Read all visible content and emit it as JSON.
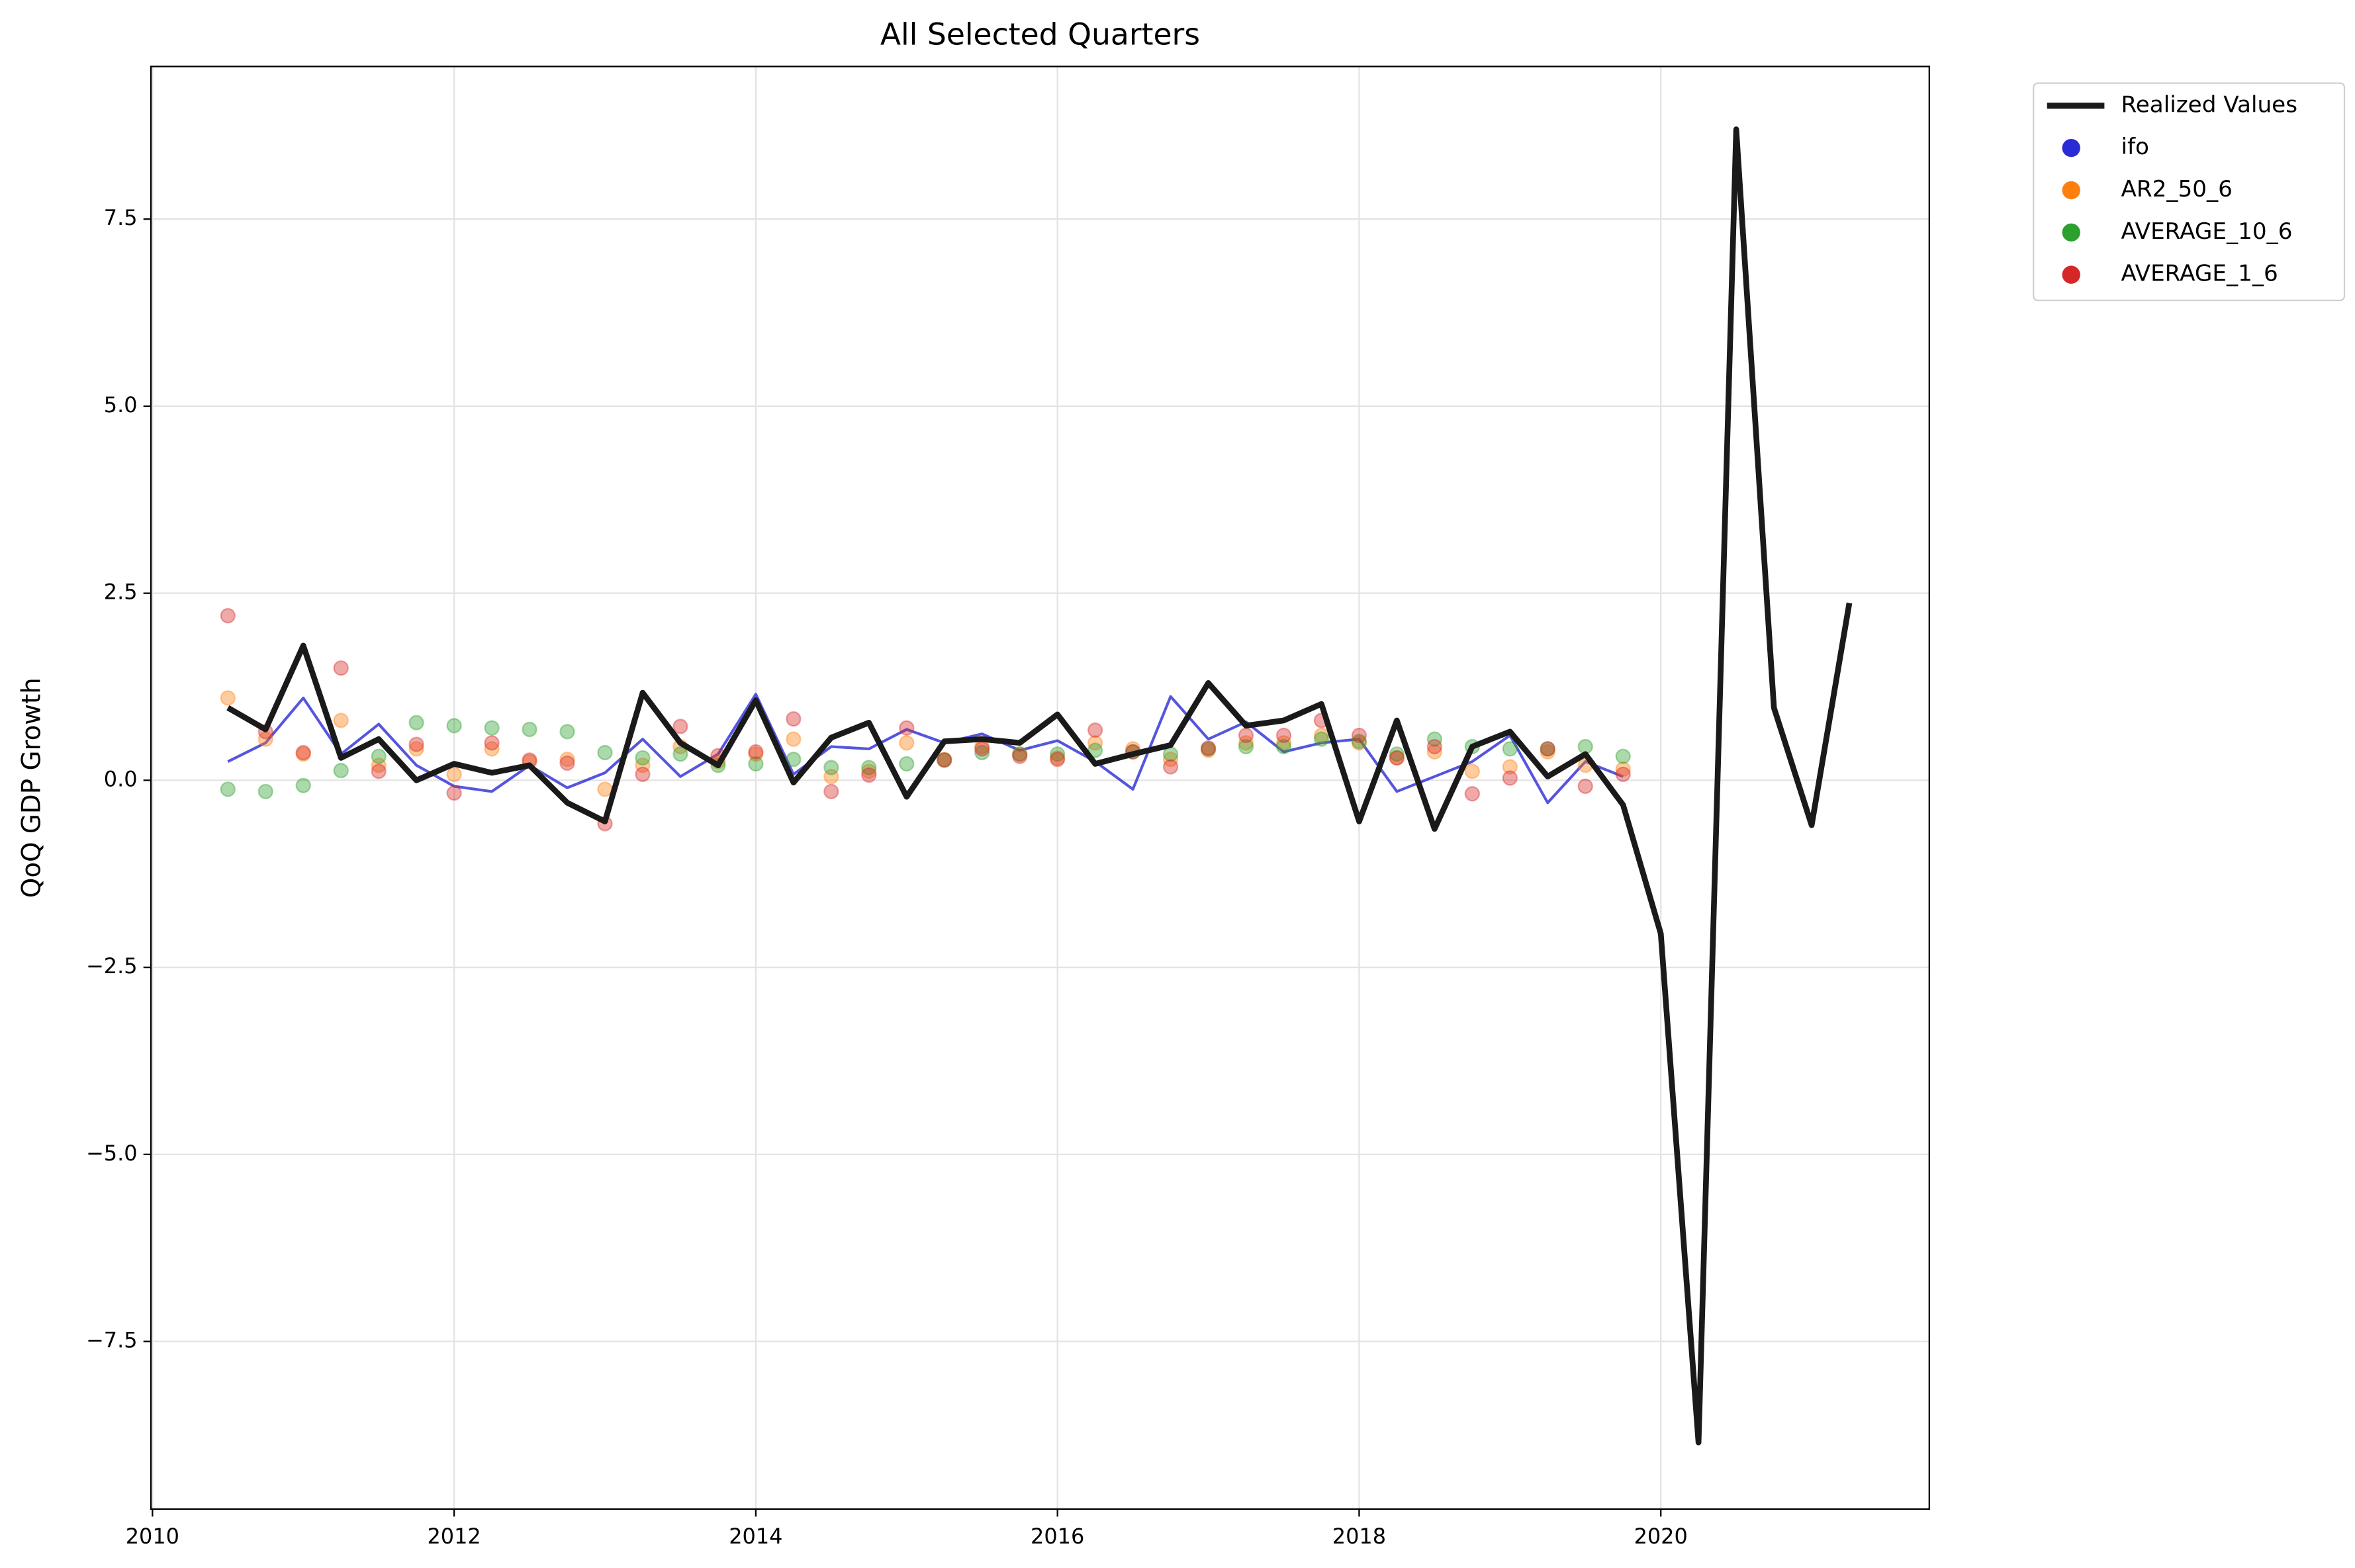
{
  "chart_data": {
    "type": "line",
    "title": "All Selected Quarters",
    "y_label": "QoQ GDP Growth",
    "xlim": [
      2009.99,
      2021.78
    ],
    "ylim": [
      -9.74,
      9.54
    ],
    "xticks": [
      2010,
      2012,
      2014,
      2016,
      2018,
      2020
    ],
    "yticks": [
      {
        "value": -7.5,
        "label": "−7.5"
      },
      {
        "value": -5,
        "label": "−5.0"
      },
      {
        "value": -2.5,
        "label": "−2.5"
      },
      {
        "value": 0,
        "label": "0.0"
      },
      2.5,
      {
        "value": 5,
        "label": "5.0"
      },
      7.5
    ],
    "grid": true,
    "legend": "outside upper right",
    "series": [
      {
        "name": "Realized Values",
        "color": "#1a1a1a",
        "kind": "line",
        "legend_marker": "line",
        "x": [
          2010.5,
          2010.75,
          2011,
          2011.25,
          2011.5,
          2011.75,
          2012,
          2012.25,
          2012.5,
          2012.75,
          2013,
          2013.25,
          2013.5,
          2013.75,
          2014,
          2014.25,
          2014.5,
          2014.75,
          2015,
          2015.25,
          2015.5,
          2015.75,
          2016,
          2016.25,
          2016.5,
          2016.75,
          2017,
          2017.25,
          2017.5,
          2017.75,
          2018,
          2018.25,
          2018.5,
          2018.75,
          2019,
          2019.25,
          2019.5,
          2019.75,
          2020,
          2020.25,
          2020.5,
          2020.75,
          2021,
          2021.25
        ],
        "values": [
          0.97,
          0.68,
          1.8,
          0.3,
          0.55,
          0.0,
          0.22,
          0.1,
          0.2,
          -0.3,
          -0.55,
          1.17,
          0.5,
          0.2,
          1.07,
          -0.03,
          0.57,
          0.77,
          -0.22,
          0.52,
          0.55,
          0.5,
          0.88,
          0.22,
          0.35,
          0.47,
          1.3,
          0.73,
          0.8,
          1.02,
          -0.55,
          0.8,
          -0.65,
          0.45,
          0.65,
          0.05,
          0.35,
          -0.33,
          -2.05,
          -8.85,
          8.7,
          0.97,
          -0.6,
          2.37
        ]
      },
      {
        "name": "ifo",
        "color": "#2b2bd6",
        "kind": "line",
        "legend_marker": "dot",
        "x": [
          2010.5,
          2010.75,
          2011,
          2011.25,
          2011.5,
          2011.75,
          2012,
          2012.25,
          2012.5,
          2012.75,
          2013,
          2013.25,
          2013.5,
          2013.75,
          2014,
          2014.25,
          2014.5,
          2014.75,
          2015,
          2015.25,
          2015.5,
          2015.75,
          2016,
          2016.25,
          2016.5,
          2016.75,
          2017,
          2017.25,
          2017.5,
          2017.75,
          2018,
          2018.25,
          2018.5,
          2018.75,
          2019,
          2019.25,
          2019.5,
          2019.75
        ],
        "values": [
          0.25,
          0.5,
          1.1,
          0.35,
          0.75,
          0.2,
          -0.08,
          -0.15,
          0.2,
          -0.1,
          0.1,
          0.55,
          0.05,
          0.35,
          1.15,
          0.08,
          0.45,
          0.42,
          0.68,
          0.5,
          0.62,
          0.4,
          0.53,
          0.25,
          -0.12,
          1.12,
          0.55,
          0.78,
          0.38,
          0.5,
          0.55,
          -0.15,
          0.05,
          0.25,
          0.6,
          -0.3,
          0.25,
          0.05
        ]
      },
      {
        "name": "AR2_50_6",
        "color": "#ff7f0e",
        "kind": "scatter",
        "legend_marker": "dot",
        "x": [
          2010.5,
          2010.75,
          2011,
          2011.25,
          2011.5,
          2011.75,
          2012,
          2012.25,
          2012.5,
          2012.75,
          2013,
          2013.25,
          2013.5,
          2013.75,
          2014,
          2014.25,
          2014.5,
          2014.75,
          2015,
          2015.25,
          2015.5,
          2015.75,
          2016,
          2016.25,
          2016.5,
          2016.75,
          2017,
          2017.25,
          2017.5,
          2017.75,
          2018,
          2018.25,
          2018.5,
          2018.75,
          2019,
          2019.25,
          2019.5,
          2019.75
        ],
        "values": [
          1.1,
          0.55,
          0.35,
          0.8,
          0.2,
          0.42,
          0.08,
          0.42,
          0.25,
          0.28,
          -0.12,
          0.2,
          0.45,
          0.25,
          0.35,
          0.55,
          0.05,
          0.12,
          0.5,
          0.28,
          0.45,
          0.35,
          0.3,
          0.5,
          0.42,
          0.28,
          0.4,
          0.5,
          0.5,
          0.6,
          0.5,
          0.3,
          0.38,
          0.12,
          0.18,
          0.38,
          0.2,
          0.15
        ]
      },
      {
        "name": "AVERAGE_10_6",
        "color": "#2ca02c",
        "kind": "scatter",
        "legend_marker": "dot",
        "x": [
          2010.5,
          2010.75,
          2011,
          2011.25,
          2011.5,
          2011.75,
          2012,
          2012.25,
          2012.5,
          2012.75,
          2013,
          2013.25,
          2013.5,
          2013.75,
          2014,
          2014.25,
          2014.5,
          2014.75,
          2015,
          2015.25,
          2015.5,
          2015.75,
          2016,
          2016.25,
          2016.5,
          2016.75,
          2017,
          2017.25,
          2017.5,
          2017.75,
          2018,
          2018.25,
          2018.5,
          2018.75,
          2019,
          2019.25,
          2019.5,
          2019.75
        ],
        "values": [
          -0.12,
          -0.15,
          -0.07,
          0.13,
          0.32,
          0.77,
          0.73,
          0.7,
          0.68,
          0.65,
          0.37,
          0.3,
          0.35,
          0.2,
          0.22,
          0.28,
          0.17,
          0.17,
          0.22,
          0.27,
          0.37,
          0.35,
          0.35,
          0.4,
          0.38,
          0.35,
          0.42,
          0.45,
          0.45,
          0.55,
          0.52,
          0.35,
          0.55,
          0.45,
          0.42,
          0.42,
          0.45,
          0.32
        ]
      },
      {
        "name": "AVERAGE_1_6",
        "color": "#d62728",
        "kind": "scatter",
        "legend_marker": "dot",
        "x": [
          2010.5,
          2010.75,
          2011,
          2011.25,
          2011.5,
          2011.75,
          2012,
          2012.25,
          2012.5,
          2012.75,
          2013,
          2013.25,
          2013.5,
          2013.75,
          2014,
          2014.25,
          2014.5,
          2014.75,
          2015,
          2015.25,
          2015.5,
          2015.75,
          2016,
          2016.25,
          2016.5,
          2016.75,
          2017,
          2017.25,
          2017.5,
          2017.75,
          2018,
          2018.25,
          2018.5,
          2018.75,
          2019,
          2019.25,
          2019.5,
          2019.75
        ],
        "values": [
          2.2,
          0.65,
          0.37,
          1.5,
          0.12,
          0.48,
          -0.17,
          0.5,
          0.27,
          0.23,
          -0.58,
          0.08,
          0.72,
          0.33,
          0.38,
          0.82,
          -0.15,
          0.07,
          0.7,
          0.27,
          0.42,
          0.32,
          0.28,
          0.67,
          0.38,
          0.18,
          0.43,
          0.6,
          0.6,
          0.8,
          0.6,
          0.3,
          0.45,
          -0.18,
          0.03,
          0.42,
          -0.08,
          0.08
        ]
      }
    ]
  }
}
